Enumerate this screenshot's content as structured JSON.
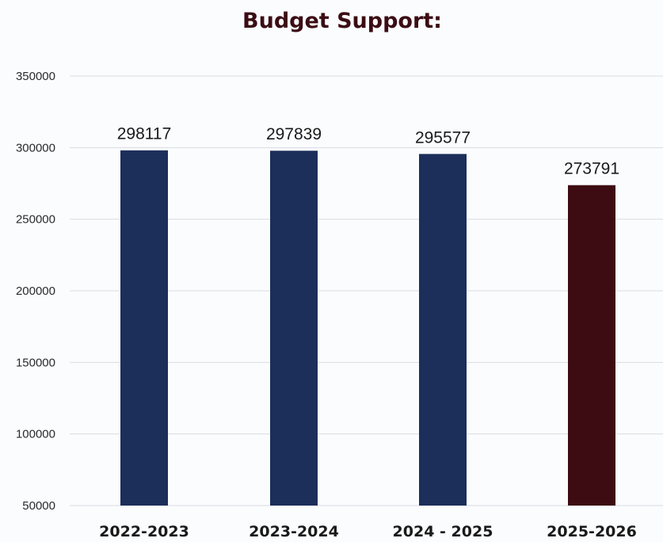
{
  "chart_data": {
    "type": "bar",
    "title": "Budget Support:",
    "categories": [
      "2022-2023",
      "2023-2024",
      "2024 - 2025",
      "2025-2026"
    ],
    "values": [
      298117,
      297839,
      295577,
      273791
    ],
    "data_labels": [
      "298117",
      "297839",
      "295577",
      "273791"
    ],
    "ylim": [
      50000,
      350000
    ],
    "yticks": [
      50000,
      100000,
      150000,
      200000,
      250000,
      300000,
      350000
    ],
    "ytick_labels": [
      "50000",
      "100000",
      "150000",
      "200000",
      "250000",
      "300000",
      "350000"
    ],
    "grid": true,
    "legend": "none",
    "bar_colors": [
      "#1c2e5a",
      "#1c2e5a",
      "#1c2e5a",
      "#3d0c12"
    ],
    "title_color": "#3b0d14"
  }
}
